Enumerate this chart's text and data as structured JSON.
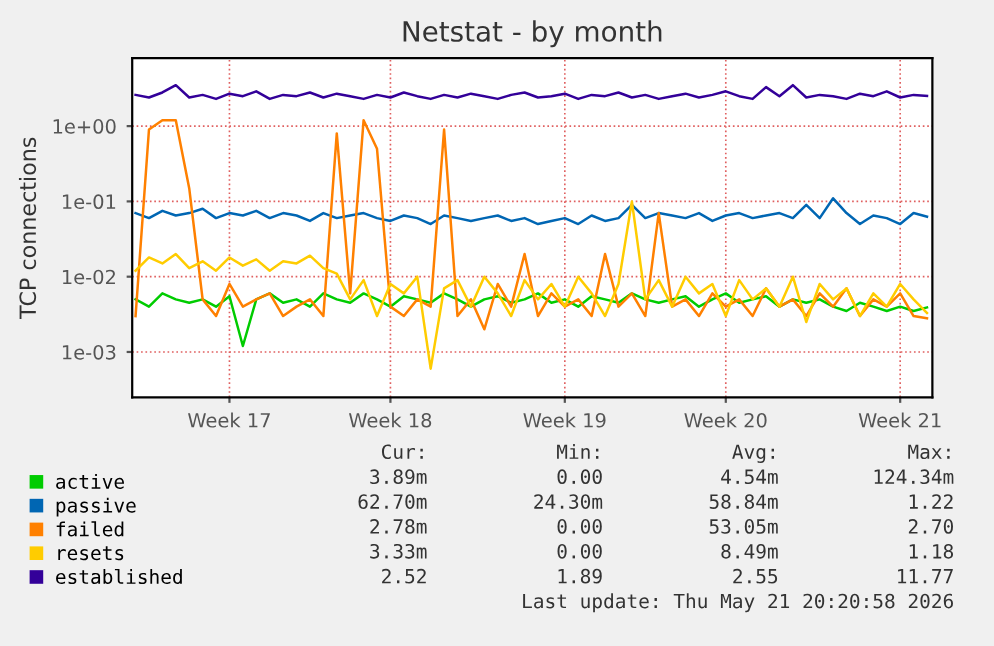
{
  "chart_data": {
    "type": "line",
    "title": "Netstat - by month",
    "ylabel": "TCP connections",
    "log": "y",
    "ylim": [
      0.00025,
      8
    ],
    "yticks": [
      {
        "value": 1,
        "label": "1e+00"
      },
      {
        "value": 0.1,
        "label": "1e-01"
      },
      {
        "value": 0.01,
        "label": "1e-02"
      },
      {
        "value": 0.001,
        "label": "1e-03"
      }
    ],
    "categories": [
      null,
      null,
      null,
      null,
      null,
      null,
      null,
      "Week 17",
      null,
      null,
      null,
      null,
      null,
      null,
      null,
      null,
      null,
      null,
      null,
      "Week 18",
      null,
      null,
      null,
      null,
      null,
      null,
      null,
      null,
      null,
      null,
      null,
      null,
      "Week 19",
      null,
      null,
      null,
      null,
      null,
      null,
      null,
      null,
      null,
      null,
      null,
      "Week 20",
      null,
      null,
      null,
      null,
      null,
      null,
      null,
      null,
      null,
      null,
      null,
      null,
      "Week 21",
      null,
      null
    ],
    "grid": true,
    "legend": "bottom left",
    "marker": "none",
    "line_style": "solid",
    "series": [
      {
        "name": "active",
        "color": "#00cc00",
        "values": [
          0.005,
          0.004,
          0.006,
          0.005,
          0.0045,
          0.005,
          0.004,
          0.0055,
          0.0012,
          0.005,
          0.006,
          0.0045,
          0.005,
          0.004,
          0.006,
          0.005,
          0.0045,
          0.006,
          0.005,
          0.004,
          0.0055,
          0.005,
          0.0045,
          0.006,
          0.005,
          0.004,
          0.005,
          0.0055,
          0.0045,
          0.005,
          0.006,
          0.0045,
          0.005,
          0.004,
          0.0055,
          0.005,
          0.0045,
          0.006,
          0.005,
          0.0045,
          0.005,
          0.0055,
          0.004,
          0.005,
          0.006,
          0.0045,
          0.005,
          0.0055,
          0.004,
          0.005,
          0.0045,
          0.005,
          0.004,
          0.0035,
          0.0045,
          0.004,
          0.0035,
          0.004,
          0.0035,
          0.0039
        ]
      },
      {
        "name": "passive",
        "color": "#0066b3",
        "values": [
          0.07,
          0.06,
          0.075,
          0.065,
          0.07,
          0.08,
          0.06,
          0.07,
          0.065,
          0.075,
          0.06,
          0.07,
          0.065,
          0.055,
          0.07,
          0.06,
          0.065,
          0.07,
          0.06,
          0.055,
          0.065,
          0.06,
          0.05,
          0.065,
          0.06,
          0.055,
          0.06,
          0.065,
          0.055,
          0.06,
          0.05,
          0.055,
          0.06,
          0.05,
          0.065,
          0.055,
          0.06,
          0.09,
          0.06,
          0.07,
          0.065,
          0.06,
          0.07,
          0.055,
          0.065,
          0.07,
          0.06,
          0.065,
          0.07,
          0.06,
          0.09,
          0.06,
          0.11,
          0.07,
          0.05,
          0.065,
          0.06,
          0.05,
          0.07,
          0.0627
        ]
      },
      {
        "name": "failed",
        "color": "#ff8000",
        "values": [
          0.003,
          0.9,
          1.2,
          1.2,
          0.15,
          0.005,
          0.003,
          0.008,
          0.004,
          0.005,
          0.006,
          0.003,
          0.004,
          0.005,
          0.003,
          0.8,
          0.006,
          1.2,
          0.5,
          0.004,
          0.003,
          0.005,
          0.004,
          0.9,
          0.003,
          0.005,
          0.002,
          0.008,
          0.004,
          0.02,
          0.003,
          0.006,
          0.004,
          0.005,
          0.003,
          0.02,
          0.004,
          0.006,
          0.003,
          0.07,
          0.004,
          0.005,
          0.003,
          0.006,
          0.004,
          0.005,
          0.003,
          0.007,
          0.004,
          0.005,
          0.003,
          0.006,
          0.004,
          0.007,
          0.003,
          0.005,
          0.004,
          0.006,
          0.003,
          0.0028
        ]
      },
      {
        "name": "resets",
        "color": "#ffcc00",
        "values": [
          0.012,
          0.018,
          0.015,
          0.02,
          0.013,
          0.016,
          0.012,
          0.018,
          0.014,
          0.017,
          0.012,
          0.016,
          0.015,
          0.019,
          0.013,
          0.011,
          0.005,
          0.009,
          0.003,
          0.008,
          0.006,
          0.01,
          0.0006,
          0.007,
          0.009,
          0.004,
          0.01,
          0.006,
          0.003,
          0.009,
          0.005,
          0.008,
          0.004,
          0.01,
          0.006,
          0.003,
          0.008,
          0.1,
          0.005,
          0.009,
          0.004,
          0.01,
          0.006,
          0.008,
          0.003,
          0.009,
          0.005,
          0.007,
          0.004,
          0.01,
          0.0025,
          0.008,
          0.005,
          0.007,
          0.003,
          0.006,
          0.004,
          0.008,
          0.005,
          0.0033
        ]
      },
      {
        "name": "established",
        "color": "#330099",
        "values": [
          2.6,
          2.4,
          2.8,
          3.5,
          2.4,
          2.6,
          2.3,
          2.7,
          2.5,
          2.9,
          2.3,
          2.6,
          2.5,
          2.8,
          2.4,
          2.7,
          2.5,
          2.3,
          2.6,
          2.4,
          2.8,
          2.5,
          2.3,
          2.6,
          2.4,
          2.7,
          2.5,
          2.3,
          2.6,
          2.8,
          2.4,
          2.5,
          2.7,
          2.3,
          2.6,
          2.5,
          2.8,
          2.4,
          2.6,
          2.3,
          2.5,
          2.7,
          2.4,
          2.6,
          2.9,
          2.5,
          2.3,
          3.3,
          2.5,
          3.5,
          2.4,
          2.6,
          2.5,
          2.3,
          2.7,
          2.5,
          2.9,
          2.4,
          2.6,
          2.52
        ]
      }
    ],
    "annotations": [
      "              Cur:           Min:           Avg:           Max:",
      "            3.89m           0.00          4.54m        124.34m",
      "           62.70m         24.30m         58.84m           1.22",
      "            2.78m           0.00         53.05m           2.70",
      "            3.33m           0.00          8.49m           1.18",
      "             2.52           1.89           2.55          11.77",
      "Last update: Thu May 21 20:20:58 2026"
    ]
  }
}
